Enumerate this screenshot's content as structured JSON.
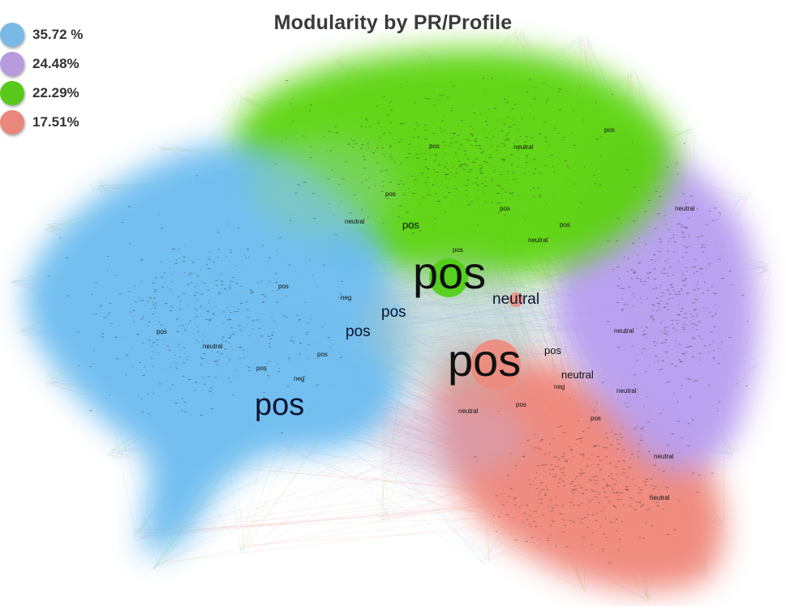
{
  "title": "Modularity by PR/Profile",
  "colors": {
    "blue": "#6cbcf0",
    "purple": "#b79ef0",
    "green": "#5bd40c",
    "red": "#f0867a"
  },
  "legend": [
    {
      "label": "35.72 %",
      "color": "#79b9e6"
    },
    {
      "label": "24.48%",
      "color": "#b89bdf"
    },
    {
      "label": "22.29%",
      "color": "#58c91b"
    },
    {
      "label": "17.51%",
      "color": "#e9877c"
    }
  ],
  "node_labels": [
    {
      "text": "pos",
      "size": "xl",
      "cluster": "green"
    },
    {
      "text": "pos",
      "size": "xl",
      "cluster": "red"
    },
    {
      "text": "pos",
      "size": "l",
      "cluster": "blue"
    },
    {
      "text": "neutral",
      "size": "m",
      "cluster": "red"
    },
    {
      "text": "pos",
      "size": "m",
      "cluster": "blue"
    },
    {
      "text": "pos",
      "size": "m",
      "cluster": "blue"
    },
    {
      "text": "pos",
      "size": "s",
      "cluster": "purple"
    },
    {
      "text": "pos",
      "size": "s",
      "cluster": "green"
    },
    {
      "text": "neutral",
      "size": "s",
      "cluster": "red"
    },
    {
      "text": "pos",
      "size": "xs",
      "cluster": "green"
    },
    {
      "text": "neutral",
      "size": "xs",
      "cluster": "green"
    },
    {
      "text": "neutral",
      "size": "xs",
      "cluster": "red"
    },
    {
      "text": "neutral",
      "size": "xs",
      "cluster": "red"
    },
    {
      "text": "neutral",
      "size": "xs",
      "cluster": "purple"
    },
    {
      "text": "neutral",
      "size": "xs",
      "cluster": "green"
    },
    {
      "text": "neg",
      "size": "xs",
      "cluster": "red"
    },
    {
      "text": "pos",
      "size": "xs",
      "cluster": "blue"
    },
    {
      "text": "pos",
      "size": "xs",
      "cluster": "blue"
    },
    {
      "text": "pos",
      "size": "xs",
      "cluster": "blue"
    },
    {
      "text": "pos",
      "size": "xs",
      "cluster": "blue"
    },
    {
      "text": "pos",
      "size": "xs",
      "cluster": "green"
    },
    {
      "text": "pos",
      "size": "xs",
      "cluster": "green"
    },
    {
      "text": "pos",
      "size": "xs",
      "cluster": "green"
    },
    {
      "text": "pos",
      "size": "xs",
      "cluster": "red"
    },
    {
      "text": "pos",
      "size": "xs",
      "cluster": "red"
    },
    {
      "text": "neutral",
      "size": "xs",
      "cluster": "green"
    },
    {
      "text": "neutral",
      "size": "xs",
      "cluster": "blue"
    },
    {
      "text": "neutral",
      "size": "xs",
      "cluster": "purple"
    },
    {
      "text": "neutral",
      "size": "xs",
      "cluster": "purple"
    },
    {
      "text": "neutral",
      "size": "xs",
      "cluster": "red"
    },
    {
      "text": "neg",
      "size": "xs",
      "cluster": "blue"
    },
    {
      "text": "neg",
      "size": "xs",
      "cluster": "blue"
    },
    {
      "text": "pos",
      "size": "xs",
      "cluster": "purple"
    },
    {
      "text": "pos",
      "size": "xs",
      "cluster": "green"
    }
  ]
}
